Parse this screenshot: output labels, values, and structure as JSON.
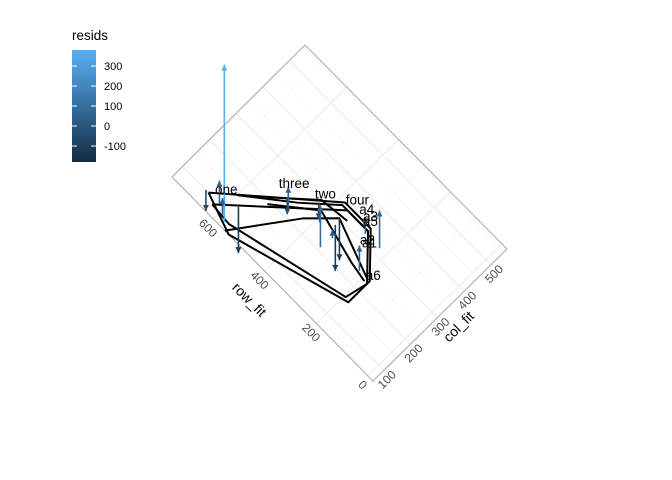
{
  "chart_data": {
    "type": "scatter",
    "subtype": "residual-arrows-with-outline-polygons",
    "xlabel": "col_fit",
    "ylabel": "row_fit",
    "x_ticks": [
      "100",
      "200",
      "300",
      "400",
      "500"
    ],
    "x_tick_values": [
      100,
      200,
      300,
      400,
      500
    ],
    "y_ticks": [
      "0",
      "200",
      "400",
      "600"
    ],
    "y_tick_values": [
      0,
      200,
      400,
      600
    ],
    "xlim": [
      60,
      560
    ],
    "ylim": [
      -20,
      760
    ],
    "grid": true,
    "legend": {
      "title": "resids",
      "placement": "top-left",
      "min": -180,
      "max": 380,
      "ticks": [
        300,
        200,
        100,
        0,
        -100
      ],
      "tick_labels": [
        "300",
        "200",
        "100",
        "0",
        "-100"
      ],
      "color_low": "#132B43",
      "color_high": "#56B1F7"
    },
    "point_labels": [
      {
        "text": "one",
        "x": 110,
        "y": 645
      },
      {
        "text": "three",
        "x": 242,
        "y": 535
      },
      {
        "text": "two",
        "x": 290,
        "y": 445
      },
      {
        "text": "four",
        "x": 338,
        "y": 375
      },
      {
        "text": "a4",
        "x": 345,
        "y": 330
      },
      {
        "text": "a3",
        "x": 340,
        "y": 310
      },
      {
        "text": "a5",
        "x": 330,
        "y": 300
      },
      {
        "text": "a2",
        "x": 290,
        "y": 270
      },
      {
        "text": "a1",
        "x": 288,
        "y": 260
      },
      {
        "text": "a6",
        "x": 235,
        "y": 190
      }
    ],
    "residual_arrows": [
      {
        "x": 75,
        "fit": 760,
        "resid": 375
      },
      {
        "x": 100,
        "fit": 645,
        "resid": 55
      },
      {
        "x": 100,
        "fit": 645,
        "resid": -50
      },
      {
        "x": 85,
        "fit": 610,
        "resid": 40
      },
      {
        "x": 215,
        "fit": 500,
        "resid": 60
      },
      {
        "x": 240,
        "fit": 480,
        "resid": -40
      },
      {
        "x": 255,
        "fit": 410,
        "resid": 40
      },
      {
        "x": 290,
        "fit": 410,
        "resid": -40
      },
      {
        "x": 130,
        "fit": 520,
        "resid": -110
      },
      {
        "x": 210,
        "fit": 390,
        "resid": 100
      },
      {
        "x": 280,
        "fit": 300,
        "resid": -110
      },
      {
        "x": 300,
        "fit": 310,
        "resid": -100
      },
      {
        "x": 320,
        "fit": 270,
        "resid": 90
      },
      {
        "x": 320,
        "fit": 300,
        "resid": 40
      },
      {
        "x": 240,
        "fit": 250,
        "resid": 60
      },
      {
        "x": 250,
        "fit": 345,
        "resid": 20
      }
    ],
    "outline_polygons": [
      [
        [
          100,
          660
        ],
        [
          340,
          380
        ],
        [
          340,
          280
        ],
        [
          240,
          180
        ],
        [
          160,
          180
        ],
        [
          60,
          540
        ],
        [
          100,
          660
        ]
      ],
      [
        [
          85,
          630
        ],
        [
          330,
          360
        ],
        [
          330,
          280
        ],
        [
          230,
          180
        ],
        [
          165,
          195
        ],
        [
          80,
          560
        ],
        [
          85,
          630
        ]
      ],
      [
        [
          60,
          555
        ],
        [
          230,
          430
        ],
        [
          300,
          360
        ],
        [
          240,
          190
        ]
      ],
      [
        [
          150,
          600
        ],
        [
          250,
          470
        ],
        [
          330,
          380
        ],
        [
          330,
          280
        ]
      ],
      [
        [
          190,
          525
        ],
        [
          280,
          410
        ],
        [
          240,
          250
        ],
        [
          230,
          190
        ]
      ],
      [
        [
          170,
          575
        ],
        [
          300,
          430
        ],
        [
          310,
          340
        ]
      ]
    ]
  }
}
